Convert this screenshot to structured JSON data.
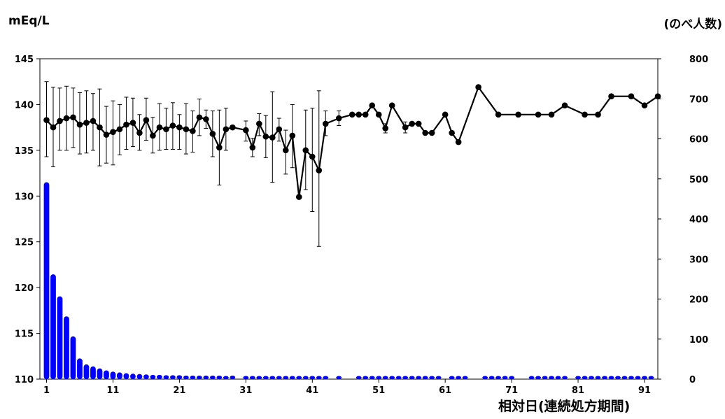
{
  "chart_data": {
    "type": "bar+line",
    "ylabel_left": "mEq/L",
    "ylabel_right": "(のべ人数)",
    "xlabel": "相対日(連続処方期間)",
    "x_ticks": [
      "1",
      "11",
      "21",
      "31",
      "41",
      "51",
      "61",
      "71",
      "81",
      "91"
    ],
    "y_left_ticks": [
      "110",
      "115",
      "120",
      "125",
      "130",
      "135",
      "140",
      "145"
    ],
    "y_right_ticks": [
      "0",
      "100",
      "200",
      "300",
      "400",
      "500",
      "600",
      "700",
      "800"
    ],
    "ylim_left": [
      110,
      145
    ],
    "ylim_right": [
      0,
      800
    ],
    "xlim": [
      0,
      93
    ],
    "colors": {
      "bars": "#0000ff",
      "line": "#000000"
    },
    "series": [
      {
        "axis": "right",
        "style": "bar",
        "x": [
          1,
          2,
          3,
          4,
          5,
          6,
          7,
          8,
          9,
          10,
          11,
          12,
          13,
          14,
          15,
          16,
          17,
          18,
          19,
          20,
          21,
          22,
          23,
          24,
          25,
          26,
          27,
          28,
          29,
          31,
          32,
          33,
          34,
          35,
          36,
          37,
          38,
          39,
          40,
          41,
          42,
          43,
          45,
          48,
          49,
          50,
          51,
          52,
          53,
          54,
          55,
          56,
          57,
          58,
          59,
          60,
          62,
          63,
          64,
          67,
          68,
          69,
          70,
          71,
          74,
          75,
          76,
          77,
          78,
          79,
          81,
          82,
          83,
          84,
          85,
          86,
          87,
          88,
          89,
          90,
          91,
          92
        ],
        "values": [
          485,
          255,
          200,
          150,
          100,
          45,
          30,
          25,
          20,
          15,
          12,
          10,
          8,
          7,
          6,
          5,
          4,
          4,
          3,
          3,
          3,
          2,
          2,
          2,
          2,
          2,
          2,
          1,
          2,
          1,
          1,
          1,
          1,
          1,
          1,
          1,
          1,
          1,
          1,
          1,
          1,
          1,
          1,
          1,
          1,
          1,
          1,
          1,
          1,
          1,
          1,
          1,
          1,
          1,
          1,
          1,
          1,
          1,
          1,
          1,
          1,
          1,
          1,
          1,
          1,
          1,
          1,
          1,
          1,
          1,
          1,
          1,
          1,
          1,
          1,
          1,
          1,
          1,
          1,
          1,
          1,
          1
        ]
      },
      {
        "axis": "left",
        "style": "line",
        "points": [
          {
            "x": 1,
            "y": 138.3,
            "lo": 134.3,
            "hi": 142.5
          },
          {
            "x": 2,
            "y": 137.5,
            "lo": 133.2,
            "hi": 141.9
          },
          {
            "x": 3,
            "y": 138.2,
            "lo": 135.0,
            "hi": 141.8
          },
          {
            "x": 4,
            "y": 138.5,
            "lo": 135.0,
            "hi": 142.0
          },
          {
            "x": 5,
            "y": 138.6,
            "lo": 135.3,
            "hi": 141.8
          },
          {
            "x": 6,
            "y": 137.8,
            "lo": 134.6,
            "hi": 141.3
          },
          {
            "x": 7,
            "y": 138.0,
            "lo": 134.7,
            "hi": 141.5
          },
          {
            "x": 8,
            "y": 138.2,
            "lo": 135.0,
            "hi": 141.2
          },
          {
            "x": 9,
            "y": 137.5,
            "lo": 133.3,
            "hi": 141.7
          },
          {
            "x": 10,
            "y": 136.7,
            "lo": 133.6,
            "hi": 139.8
          },
          {
            "x": 11,
            "y": 137.0,
            "lo": 133.4,
            "hi": 140.4
          },
          {
            "x": 12,
            "y": 137.3,
            "lo": 134.5,
            "hi": 140.0
          },
          {
            "x": 13,
            "y": 137.8,
            "lo": 135.1,
            "hi": 140.8
          },
          {
            "x": 14,
            "y": 138.0,
            "lo": 135.4,
            "hi": 140.7
          },
          {
            "x": 15,
            "y": 136.9,
            "lo": 135.0,
            "hi": 138.9
          },
          {
            "x": 16,
            "y": 138.3,
            "lo": 136.1,
            "hi": 140.7
          },
          {
            "x": 17,
            "y": 136.6,
            "lo": 134.7,
            "hi": 138.6
          },
          {
            "x": 18,
            "y": 137.5,
            "lo": 135.0,
            "hi": 140.1
          },
          {
            "x": 19,
            "y": 137.3,
            "lo": 135.1,
            "hi": 139.6
          },
          {
            "x": 20,
            "y": 137.7,
            "lo": 135.1,
            "hi": 140.2
          },
          {
            "x": 21,
            "y": 137.5,
            "lo": 135.1,
            "hi": 138.9
          },
          {
            "x": 22,
            "y": 137.3,
            "lo": 134.6,
            "hi": 140.1
          },
          {
            "x": 23,
            "y": 137.1,
            "lo": 134.8,
            "hi": 139.3
          },
          {
            "x": 24,
            "y": 138.6,
            "lo": 136.6,
            "hi": 140.6
          },
          {
            "x": 25,
            "y": 138.4,
            "lo": 137.4,
            "hi": 139.4
          },
          {
            "x": 26,
            "y": 136.8,
            "lo": 134.3,
            "hi": 139.3
          },
          {
            "x": 27,
            "y": 135.3,
            "lo": 131.2,
            "hi": 139.4
          },
          {
            "x": 28,
            "y": 137.3,
            "lo": 135.0,
            "hi": 139.6
          },
          {
            "x": 29,
            "y": 137.5
          },
          {
            "x": 31,
            "y": 137.2,
            "lo": 136.0,
            "hi": 138.2
          },
          {
            "x": 32,
            "y": 135.3,
            "lo": 134.3,
            "hi": 136.3
          },
          {
            "x": 33,
            "y": 137.9,
            "lo": 136.6,
            "hi": 139.0
          },
          {
            "x": 34,
            "y": 136.5,
            "lo": 134.2,
            "hi": 138.8
          },
          {
            "x": 35,
            "y": 136.4,
            "lo": 131.5,
            "hi": 141.4
          },
          {
            "x": 36,
            "y": 137.3,
            "lo": 136.0,
            "hi": 138.5
          },
          {
            "x": 37,
            "y": 135.0,
            "lo": 132.4,
            "hi": 137.2
          },
          {
            "x": 38,
            "y": 136.6,
            "lo": 133.1,
            "hi": 140.0
          },
          {
            "x": 39,
            "y": 129.9
          },
          {
            "x": 40,
            "y": 135.0,
            "lo": 130.7,
            "hi": 139.4
          },
          {
            "x": 41,
            "y": 134.3,
            "lo": 128.3,
            "hi": 139.6
          },
          {
            "x": 42,
            "y": 132.8,
            "lo": 124.5,
            "hi": 141.5
          },
          {
            "x": 43,
            "y": 137.9,
            "lo": 136.6,
            "hi": 139.3
          },
          {
            "x": 45,
            "y": 138.5,
            "lo": 137.7,
            "hi": 139.3
          },
          {
            "x": 47,
            "y": 138.9
          },
          {
            "x": 48,
            "y": 138.9
          },
          {
            "x": 49,
            "y": 138.9
          },
          {
            "x": 50,
            "y": 139.9
          },
          {
            "x": 51,
            "y": 138.9
          },
          {
            "x": 52,
            "y": 137.4,
            "lo": 136.9,
            "hi": 137.9
          },
          {
            "x": 53,
            "y": 139.9
          },
          {
            "x": 55,
            "y": 137.5,
            "lo": 136.9,
            "hi": 138.1
          },
          {
            "x": 56,
            "y": 137.9
          },
          {
            "x": 57,
            "y": 137.9
          },
          {
            "x": 58,
            "y": 136.9
          },
          {
            "x": 59,
            "y": 136.9
          },
          {
            "x": 61,
            "y": 138.9
          },
          {
            "x": 62,
            "y": 136.9
          },
          {
            "x": 63,
            "y": 135.9
          },
          {
            "x": 66,
            "y": 141.9
          },
          {
            "x": 69,
            "y": 138.9
          },
          {
            "x": 72,
            "y": 138.9
          },
          {
            "x": 75,
            "y": 138.9
          },
          {
            "x": 77,
            "y": 138.9
          },
          {
            "x": 79,
            "y": 139.9
          },
          {
            "x": 82,
            "y": 138.9
          },
          {
            "x": 84,
            "y": 138.9
          },
          {
            "x": 86,
            "y": 140.9
          },
          {
            "x": 89,
            "y": 140.9
          },
          {
            "x": 91,
            "y": 139.9
          },
          {
            "x": 93,
            "y": 140.9
          }
        ]
      }
    ]
  }
}
